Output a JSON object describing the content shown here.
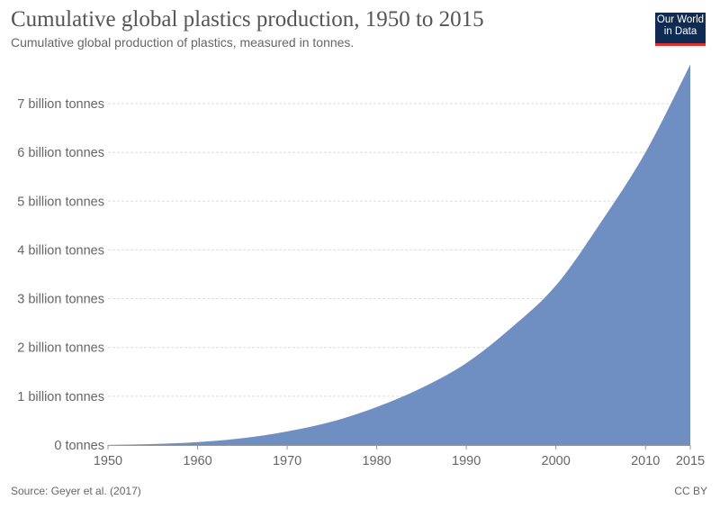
{
  "header": {
    "title": "Cumulative global plastics production, 1950 to 2015",
    "subtitle": "Cumulative global production of plastics, measured in tonnes.",
    "logo_text": "Our World in Data"
  },
  "footer": {
    "source": "Source: Geyer et al. (2017)",
    "license": "CC BY"
  },
  "colors": {
    "area": "#6f8fc3",
    "grid": "#dddddd",
    "logo_bg": "#0f2b53",
    "logo_accent": "#e0312b"
  },
  "chart_data": {
    "type": "area",
    "title": "Cumulative global plastics production, 1950 to 2015",
    "x": [
      1950,
      1955,
      1960,
      1965,
      1970,
      1975,
      1980,
      1985,
      1990,
      1995,
      2000,
      2005,
      2010,
      2015
    ],
    "values": [
      0.002,
      0.02,
      0.06,
      0.14,
      0.28,
      0.48,
      0.78,
      1.17,
      1.68,
      2.4,
      3.27,
      4.56,
      6.0,
      7.8
    ],
    "unit": "billion tonnes",
    "xlim": [
      1950,
      2015
    ],
    "ylim": [
      0,
      7.8
    ],
    "x_ticks": [
      1950,
      1960,
      1970,
      1980,
      1990,
      2000,
      2010,
      2015
    ],
    "y_ticks": [
      0,
      1,
      2,
      3,
      4,
      5,
      6,
      7
    ],
    "y_tick_labels": [
      "0 tonnes",
      "1 billion tonnes",
      "2 billion tonnes",
      "3 billion tonnes",
      "4 billion tonnes",
      "5 billion tonnes",
      "6 billion tonnes",
      "7 billion tonnes"
    ],
    "grid": "horizontal dashed"
  }
}
